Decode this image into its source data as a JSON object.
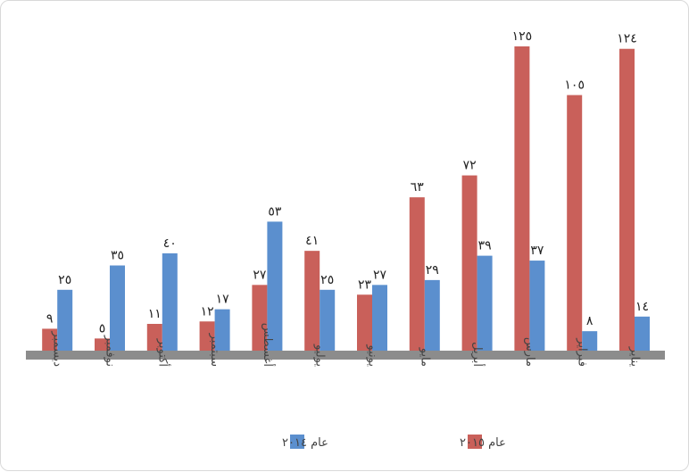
{
  "chart_data": {
    "type": "bar",
    "categories": [
      "يناير",
      "فبراير",
      "مارس",
      "أبريل",
      "مايو",
      "يونيو",
      "يوليو",
      "أغسطس",
      "سبتمبر",
      "أكتوبر",
      "نوفمبر",
      "ديسمبر"
    ],
    "series": [
      {
        "name": "عام ٢٠١٥",
        "color": "#c9605a",
        "values": [
          124,
          105,
          125,
          72,
          63,
          23,
          41,
          27,
          12,
          11,
          5,
          9
        ],
        "labels": [
          "١٢٤",
          "١٠٥",
          "١٢٥",
          "٧٢",
          "٦٣",
          "٢٣",
          "٤١",
          "٢٧",
          "١٢",
          "١١",
          "٥",
          "٩"
        ]
      },
      {
        "name": "عام ٢٠١٤",
        "color": "#5b8fce",
        "values": [
          14,
          8,
          37,
          39,
          29,
          27,
          25,
          53,
          17,
          40,
          35,
          25
        ],
        "labels": [
          "١٤",
          "٨",
          "٣٧",
          "٣٩",
          "٢٩",
          "٢٧",
          "٢٥",
          "٥٣",
          "١٧",
          "٤٠",
          "٣٥",
          "٢٥"
        ]
      }
    ],
    "title": "",
    "xlabel": "",
    "ylabel": "",
    "ylim": [
      0,
      125
    ],
    "grid": false,
    "axis_color": "#8c8c8c",
    "legend_position": "bottom",
    "direction": "rtl"
  }
}
